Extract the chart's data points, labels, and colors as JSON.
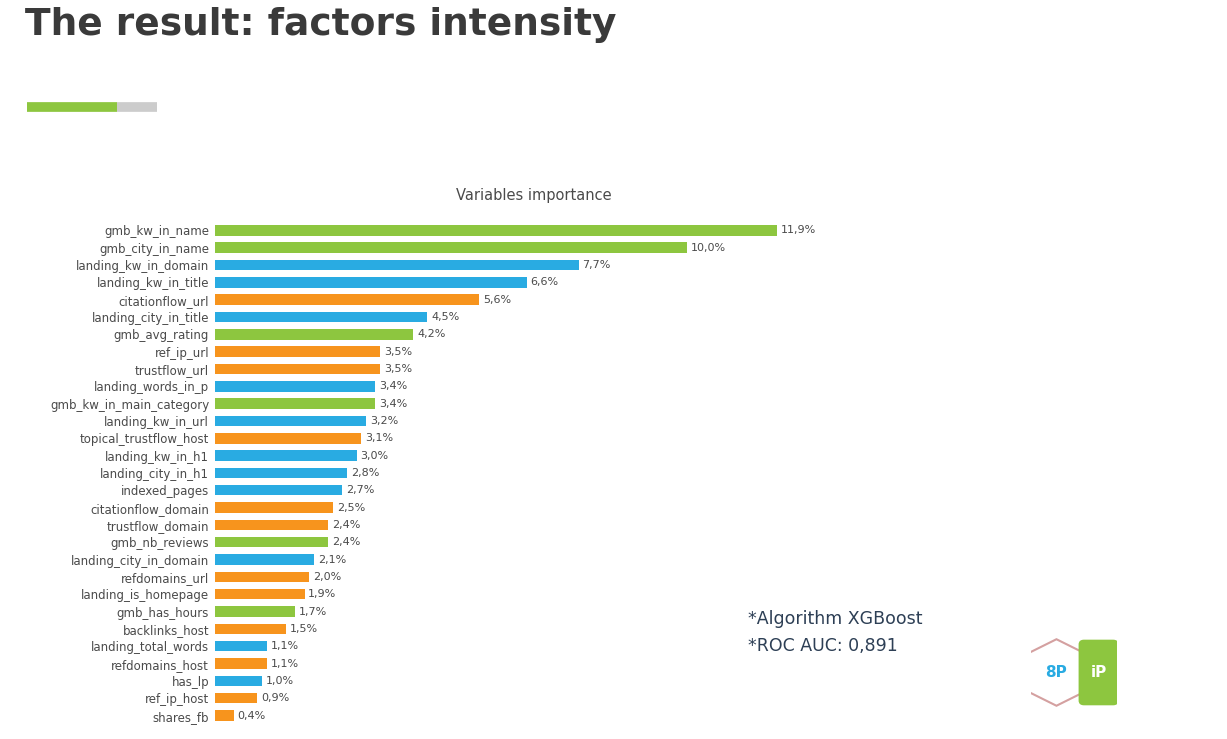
{
  "title": "The result: factors intensity",
  "subtitle": "Variables importance",
  "categories": [
    "gmb_kw_in_name",
    "gmb_city_in_name",
    "landing_kw_in_domain",
    "landing_kw_in_title",
    "citationflow_url",
    "landing_city_in_title",
    "gmb_avg_rating",
    "ref_ip_url",
    "trustflow_url",
    "landing_words_in_p",
    "gmb_kw_in_main_category",
    "landing_kw_in_url",
    "topical_trustflow_host",
    "landing_kw_in_h1",
    "landing_city_in_h1",
    "indexed_pages",
    "citationflow_domain",
    "trustflow_domain",
    "gmb_nb_reviews",
    "landing_city_in_domain",
    "refdomains_url",
    "landing_is_homepage",
    "gmb_has_hours",
    "backlinks_host",
    "landing_total_words",
    "refdomains_host",
    "has_lp",
    "ref_ip_host",
    "shares_fb"
  ],
  "values": [
    11.9,
    10.0,
    7.7,
    6.6,
    5.6,
    4.5,
    4.2,
    3.5,
    3.5,
    3.4,
    3.4,
    3.2,
    3.1,
    3.0,
    2.8,
    2.7,
    2.5,
    2.4,
    2.4,
    2.1,
    2.0,
    1.9,
    1.7,
    1.5,
    1.1,
    1.1,
    1.0,
    0.9,
    0.4
  ],
  "labels": [
    "11,9%",
    "10,0%",
    "7,7%",
    "6,6%",
    "5,6%",
    "4,5%",
    "4,2%",
    "3,5%",
    "3,5%",
    "3,4%",
    "3,4%",
    "3,2%",
    "3,1%",
    "3,0%",
    "2,8%",
    "2,7%",
    "2,5%",
    "2,4%",
    "2,4%",
    "2,1%",
    "2,0%",
    "1,9%",
    "1,7%",
    "1,5%",
    "1,1%",
    "1,1%",
    "1,0%",
    "0,9%",
    "0,4%"
  ],
  "colors": [
    "#8DC63F",
    "#8DC63F",
    "#29ABE2",
    "#29ABE2",
    "#F7941D",
    "#29ABE2",
    "#8DC63F",
    "#F7941D",
    "#F7941D",
    "#29ABE2",
    "#8DC63F",
    "#29ABE2",
    "#F7941D",
    "#29ABE2",
    "#29ABE2",
    "#29ABE2",
    "#F7941D",
    "#F7941D",
    "#8DC63F",
    "#29ABE2",
    "#F7941D",
    "#F7941D",
    "#8DC63F",
    "#F7941D",
    "#29ABE2",
    "#F7941D",
    "#29ABE2",
    "#F7941D",
    "#F7941D"
  ],
  "title_color": "#3A3A3A",
  "label_color": "#4A4A4A",
  "bar_label_color": "#4A4A4A",
  "subtitle_color": "#4A4A4A",
  "annotation_color": "#2D3F55",
  "annotation_text": "*Algorithm XGBoost\n*ROC AUC: 0,891",
  "legend_green": "#8DC63F",
  "legend_grey": "#AAAAAA",
  "bg_color": "#FFFFFF",
  "xlim": [
    0,
    13.5
  ],
  "bar_height": 0.6
}
